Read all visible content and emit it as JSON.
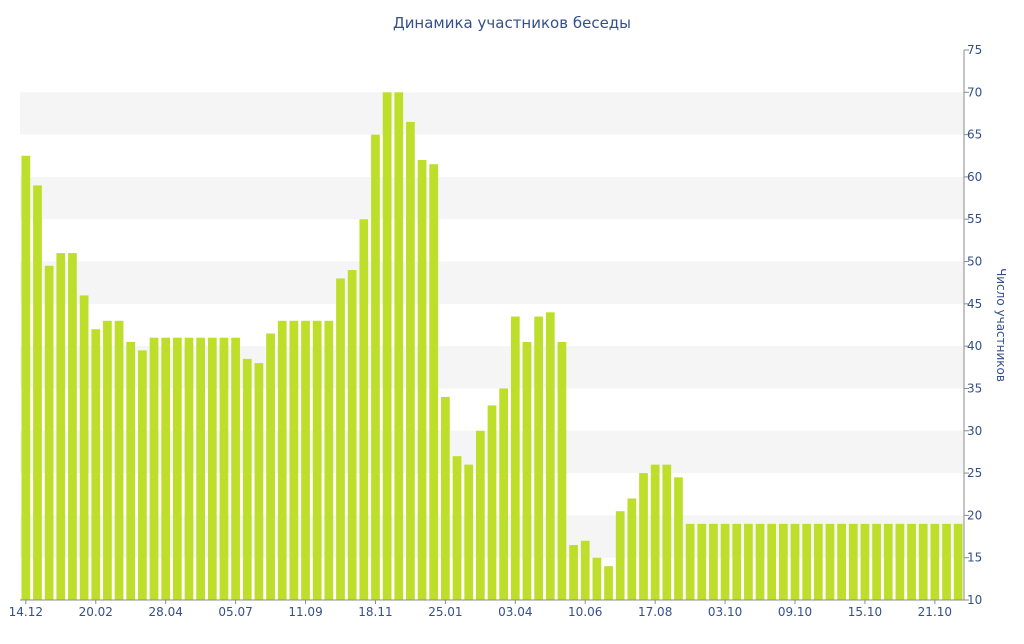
{
  "chart_data": {
    "type": "bar",
    "title": "Динамика участников беседы",
    "ylabel": "Число участников",
    "xlabel": "",
    "ylim": [
      10,
      75
    ],
    "yticks": [
      10,
      15,
      20,
      25,
      30,
      35,
      40,
      45,
      50,
      55,
      60,
      65,
      70,
      75
    ],
    "y_axis_position": "right",
    "grid": "alternating horizontal bands",
    "legend": "none",
    "bar_color": "#bddf2c",
    "x_tick_labels": [
      {
        "index": 0,
        "label": "14.12"
      },
      {
        "index": 6,
        "label": "20.02"
      },
      {
        "index": 12,
        "label": "28.04"
      },
      {
        "index": 18,
        "label": "05.07"
      },
      {
        "index": 24,
        "label": "11.09"
      },
      {
        "index": 30,
        "label": "18.11"
      },
      {
        "index": 36,
        "label": "25.01"
      },
      {
        "index": 42,
        "label": "03.04"
      },
      {
        "index": 48,
        "label": "10.06"
      },
      {
        "index": 54,
        "label": "17.08"
      },
      {
        "index": 60,
        "label": "03.10"
      },
      {
        "index": 66,
        "label": "09.10"
      },
      {
        "index": 72,
        "label": "15.10"
      },
      {
        "index": 78,
        "label": "21.10"
      }
    ],
    "values": [
      62.5,
      59,
      49.5,
      51,
      51,
      46,
      42,
      43,
      43,
      40.5,
      39.5,
      41,
      41,
      41,
      41,
      41,
      41,
      41,
      41,
      38.5,
      38,
      41.5,
      43,
      43,
      43,
      43,
      43,
      48,
      49,
      55,
      65,
      70,
      70,
      66.5,
      62,
      61.5,
      34,
      27,
      26,
      30,
      33,
      35,
      43.5,
      40.5,
      43.5,
      44,
      40.5,
      16.5,
      17,
      15,
      14,
      20.5,
      22,
      25,
      26,
      26,
      24.5,
      19,
      19,
      19,
      19,
      19,
      19,
      19,
      19,
      19,
      19,
      19,
      19,
      19,
      19,
      19,
      19,
      19,
      19,
      19,
      19,
      19,
      19,
      19,
      19
    ]
  }
}
